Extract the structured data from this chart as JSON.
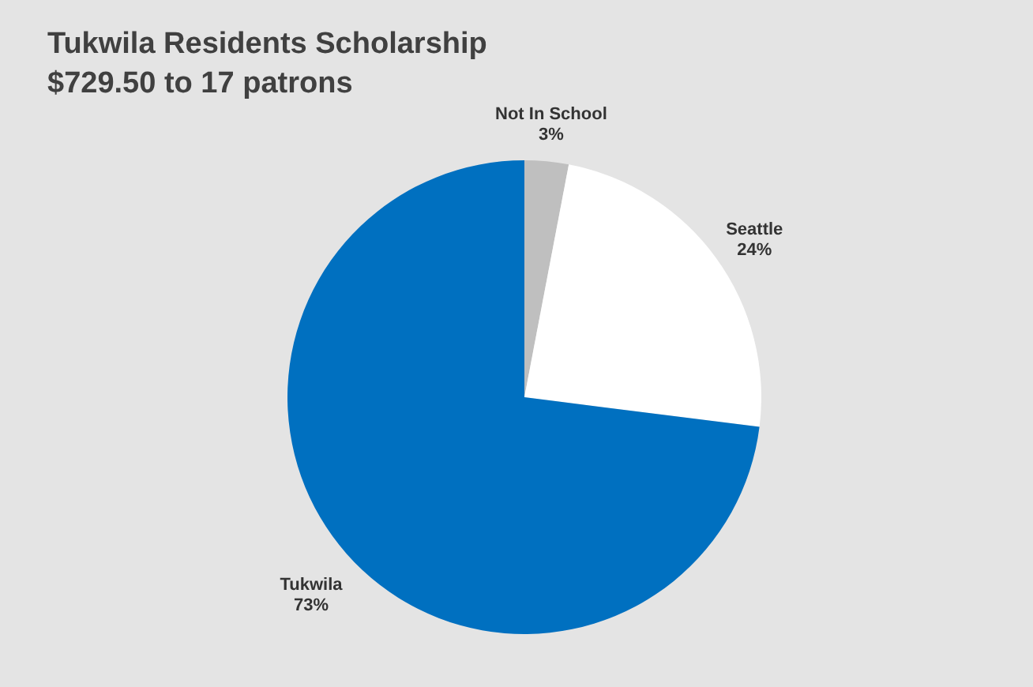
{
  "chart_data": {
    "type": "pie",
    "title": "Tukwila Residents Scholarship",
    "subtitle": "$729.50 to 17 patrons",
    "categories": [
      "Not In School",
      "Seattle",
      "Tukwila"
    ],
    "values": [
      3,
      24,
      73
    ],
    "value_labels": [
      "3%",
      "24%",
      "73%"
    ],
    "colors": [
      "#bfbfbf",
      "#ffffff",
      "#0070c0"
    ],
    "legend": false
  }
}
